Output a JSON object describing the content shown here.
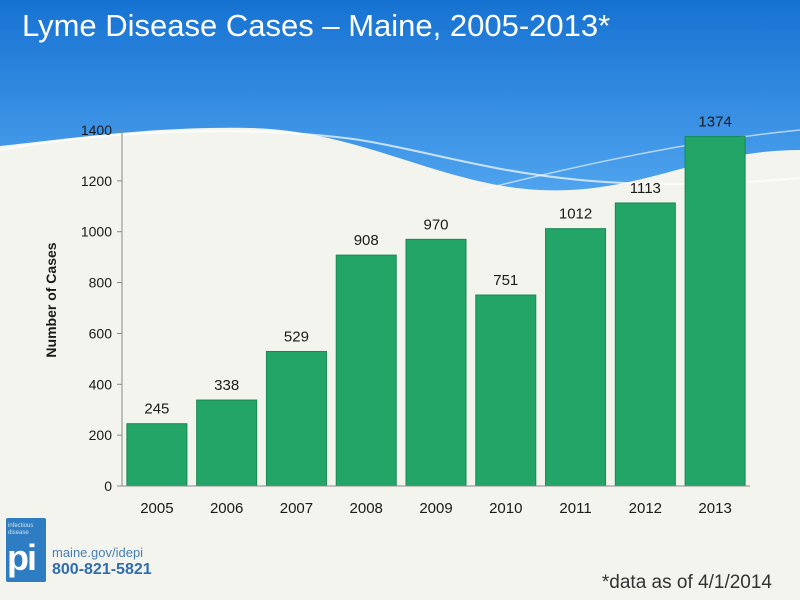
{
  "colors": {
    "bar": "#22a566",
    "bar_stroke": "#168a52",
    "header_blue": "#1e7fd9",
    "text": "#1a1a1a"
  },
  "chart_data": {
    "type": "bar",
    "title": "Lyme Disease Cases – Maine, 2005-2013*",
    "ylabel": "Number of Cases",
    "xlabel": "",
    "categories": [
      "2005",
      "2006",
      "2007",
      "2008",
      "2009",
      "2010",
      "2011",
      "2012",
      "2013"
    ],
    "values": [
      245,
      338,
      529,
      908,
      970,
      751,
      1012,
      1113,
      1374
    ],
    "ylim": [
      0,
      1400
    ],
    "yticks": [
      0,
      200,
      400,
      600,
      800,
      1000,
      1200,
      1400
    ],
    "grid": false,
    "legend": "none",
    "footnote": "*data as of 4/1/2014"
  },
  "logo": {
    "small_text": "infectious disease",
    "mark": "pi"
  },
  "contact": {
    "website": "maine.gov/idepi",
    "phone": "800-821-5821"
  }
}
